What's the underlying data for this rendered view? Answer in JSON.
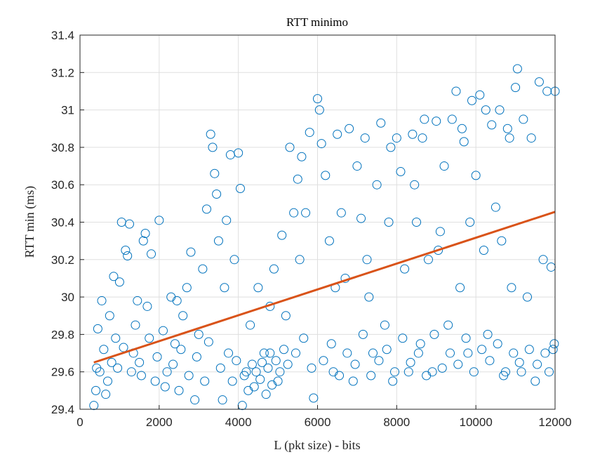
{
  "chart_data": {
    "type": "scatter",
    "title": "RTT minimo",
    "xlabel": "L (pkt size) - bits",
    "ylabel": "RTT min (ms)",
    "xlim": [
      0,
      12000
    ],
    "ylim": [
      29.4,
      31.4
    ],
    "xticks": [
      "0",
      "2000",
      "4000",
      "6000",
      "8000",
      "10000",
      "12000"
    ],
    "yticks": [
      "29.4",
      "29.6",
      "29.8",
      "30",
      "30.2",
      "30.4",
      "30.6",
      "30.8",
      "31",
      "31.2",
      "31.4"
    ],
    "grid": true,
    "colors": {
      "points": "#0072BD",
      "fit": "#D95319"
    },
    "fit_line": {
      "x": [
        350,
        12000
      ],
      "y": [
        29.65,
        30.455
      ]
    },
    "points": [
      [
        350,
        29.42
      ],
      [
        400,
        29.5
      ],
      [
        450,
        29.83
      ],
      [
        500,
        29.6
      ],
      [
        550,
        29.98
      ],
      [
        600,
        29.72
      ],
      [
        700,
        29.55
      ],
      [
        750,
        29.9
      ],
      [
        800,
        29.65
      ],
      [
        850,
        30.11
      ],
      [
        900,
        29.78
      ],
      [
        1000,
        30.08
      ],
      [
        1050,
        30.4
      ],
      [
        1100,
        29.73
      ],
      [
        1150,
        30.25
      ],
      [
        1200,
        30.22
      ],
      [
        1250,
        30.39
      ],
      [
        1300,
        29.6
      ],
      [
        1400,
        29.85
      ],
      [
        1500,
        29.65
      ],
      [
        1600,
        30.3
      ],
      [
        1650,
        30.34
      ],
      [
        1700,
        29.95
      ],
      [
        1800,
        30.23
      ],
      [
        1900,
        29.55
      ],
      [
        2000,
        30.41
      ],
      [
        2100,
        29.82
      ],
      [
        2200,
        29.6
      ],
      [
        2300,
        30.0
      ],
      [
        2400,
        29.75
      ],
      [
        2500,
        29.5
      ],
      [
        2600,
        29.9
      ],
      [
        2700,
        30.05
      ],
      [
        2800,
        30.24
      ],
      [
        2900,
        29.45
      ],
      [
        3000,
        29.8
      ],
      [
        3100,
        30.15
      ],
      [
        3200,
        30.47
      ],
      [
        3300,
        30.87
      ],
      [
        3350,
        30.8
      ],
      [
        3400,
        30.66
      ],
      [
        3450,
        30.55
      ],
      [
        3500,
        30.3
      ],
      [
        3600,
        29.45
      ],
      [
        3700,
        30.41
      ],
      [
        3800,
        30.76
      ],
      [
        3900,
        30.2
      ],
      [
        4000,
        30.77
      ],
      [
        4050,
        30.58
      ],
      [
        4100,
        29.42
      ],
      [
        4200,
        29.6
      ],
      [
        4300,
        29.85
      ],
      [
        4400,
        29.52
      ],
      [
        4500,
        30.05
      ],
      [
        4600,
        29.65
      ],
      [
        4700,
        29.48
      ],
      [
        4800,
        29.7
      ],
      [
        4900,
        30.15
      ],
      [
        5000,
        29.55
      ],
      [
        5100,
        30.33
      ],
      [
        5200,
        29.9
      ],
      [
        5300,
        30.8
      ],
      [
        5400,
        30.45
      ],
      [
        5500,
        30.63
      ],
      [
        5600,
        30.75
      ],
      [
        5700,
        30.45
      ],
      [
        5800,
        30.88
      ],
      [
        5900,
        29.46
      ],
      [
        6000,
        31.06
      ],
      [
        6050,
        31.0
      ],
      [
        6100,
        30.82
      ],
      [
        6200,
        30.65
      ],
      [
        6300,
        30.3
      ],
      [
        6400,
        29.6
      ],
      [
        6500,
        30.87
      ],
      [
        6600,
        30.45
      ],
      [
        6700,
        30.1
      ],
      [
        6800,
        30.9
      ],
      [
        6900,
        29.55
      ],
      [
        7000,
        30.7
      ],
      [
        7100,
        30.42
      ],
      [
        7200,
        30.85
      ],
      [
        7300,
        30.0
      ],
      [
        7400,
        29.7
      ],
      [
        7500,
        30.6
      ],
      [
        7600,
        30.93
      ],
      [
        7700,
        29.85
      ],
      [
        7800,
        30.4
      ],
      [
        7900,
        29.55
      ],
      [
        8000,
        30.85
      ],
      [
        8100,
        30.67
      ],
      [
        8200,
        30.15
      ],
      [
        8300,
        29.6
      ],
      [
        8400,
        30.87
      ],
      [
        8500,
        30.4
      ],
      [
        8600,
        29.75
      ],
      [
        8700,
        30.95
      ],
      [
        8800,
        30.2
      ],
      [
        8900,
        29.6
      ],
      [
        9000,
        30.94
      ],
      [
        9100,
        30.35
      ],
      [
        9200,
        30.7
      ],
      [
        9300,
        29.85
      ],
      [
        9400,
        30.95
      ],
      [
        9500,
        31.1
      ],
      [
        9600,
        30.05
      ],
      [
        9700,
        30.83
      ],
      [
        9800,
        29.7
      ],
      [
        9900,
        31.05
      ],
      [
        10000,
        30.65
      ],
      [
        10100,
        31.08
      ],
      [
        10200,
        30.25
      ],
      [
        10300,
        29.8
      ],
      [
        10400,
        30.92
      ],
      [
        10500,
        30.48
      ],
      [
        10600,
        31.0
      ],
      [
        10700,
        29.58
      ],
      [
        10800,
        30.9
      ],
      [
        10900,
        30.05
      ],
      [
        11000,
        31.12
      ],
      [
        11050,
        31.22
      ],
      [
        11100,
        29.65
      ],
      [
        11200,
        30.95
      ],
      [
        11300,
        30.0
      ],
      [
        11400,
        30.85
      ],
      [
        11500,
        29.55
      ],
      [
        11600,
        31.15
      ],
      [
        11700,
        30.2
      ],
      [
        11800,
        31.1
      ],
      [
        11900,
        30.16
      ],
      [
        11950,
        29.72
      ],
      [
        12000,
        31.1
      ],
      [
        420,
        29.62
      ],
      [
        650,
        29.48
      ],
      [
        950,
        29.62
      ],
      [
        1350,
        29.7
      ],
      [
        1550,
        29.58
      ],
      [
        1750,
        29.78
      ],
      [
        1950,
        29.68
      ],
      [
        2150,
        29.52
      ],
      [
        2350,
        29.64
      ],
      [
        2550,
        29.72
      ],
      [
        2750,
        29.58
      ],
      [
        2950,
        29.68
      ],
      [
        3150,
        29.55
      ],
      [
        3250,
        29.76
      ],
      [
        3550,
        29.62
      ],
      [
        3750,
        29.7
      ],
      [
        3850,
        29.55
      ],
      [
        3950,
        29.66
      ],
      [
        4150,
        29.58
      ],
      [
        4250,
        29.5
      ],
      [
        4350,
        29.64
      ],
      [
        4450,
        29.6
      ],
      [
        4550,
        29.56
      ],
      [
        4650,
        29.7
      ],
      [
        4750,
        29.62
      ],
      [
        4850,
        29.53
      ],
      [
        4950,
        29.66
      ],
      [
        5050,
        29.6
      ],
      [
        5150,
        29.72
      ],
      [
        5250,
        29.64
      ],
      [
        5450,
        29.7
      ],
      [
        5650,
        29.78
      ],
      [
        5850,
        29.62
      ],
      [
        6150,
        29.66
      ],
      [
        6350,
        29.75
      ],
      [
        6550,
        29.58
      ],
      [
        6750,
        29.7
      ],
      [
        6950,
        29.64
      ],
      [
        7150,
        29.8
      ],
      [
        7350,
        29.58
      ],
      [
        7550,
        29.66
      ],
      [
        7750,
        29.72
      ],
      [
        7950,
        29.6
      ],
      [
        8150,
        29.78
      ],
      [
        8350,
        29.65
      ],
      [
        8550,
        29.7
      ],
      [
        8750,
        29.58
      ],
      [
        8950,
        29.8
      ],
      [
        9150,
        29.62
      ],
      [
        9350,
        29.7
      ],
      [
        9550,
        29.64
      ],
      [
        9750,
        29.78
      ],
      [
        9950,
        29.6
      ],
      [
        10150,
        29.72
      ],
      [
        10350,
        29.66
      ],
      [
        10550,
        29.75
      ],
      [
        10750,
        29.6
      ],
      [
        10950,
        29.7
      ],
      [
        11150,
        29.6
      ],
      [
        11350,
        29.72
      ],
      [
        11550,
        29.64
      ],
      [
        11750,
        29.7
      ],
      [
        11850,
        29.6
      ],
      [
        11980,
        29.75
      ],
      [
        8450,
        30.6
      ],
      [
        9050,
        30.25
      ],
      [
        9850,
        30.4
      ],
      [
        10650,
        30.3
      ],
      [
        7250,
        30.2
      ],
      [
        6450,
        30.05
      ],
      [
        5550,
        30.2
      ],
      [
        4800,
        29.95
      ],
      [
        3650,
        30.05
      ],
      [
        2450,
        29.98
      ],
      [
        1450,
        29.98
      ],
      [
        9650,
        30.9
      ],
      [
        10250,
        31.0
      ],
      [
        10850,
        30.85
      ],
      [
        8650,
        30.85
      ],
      [
        7850,
        30.8
      ]
    ]
  }
}
